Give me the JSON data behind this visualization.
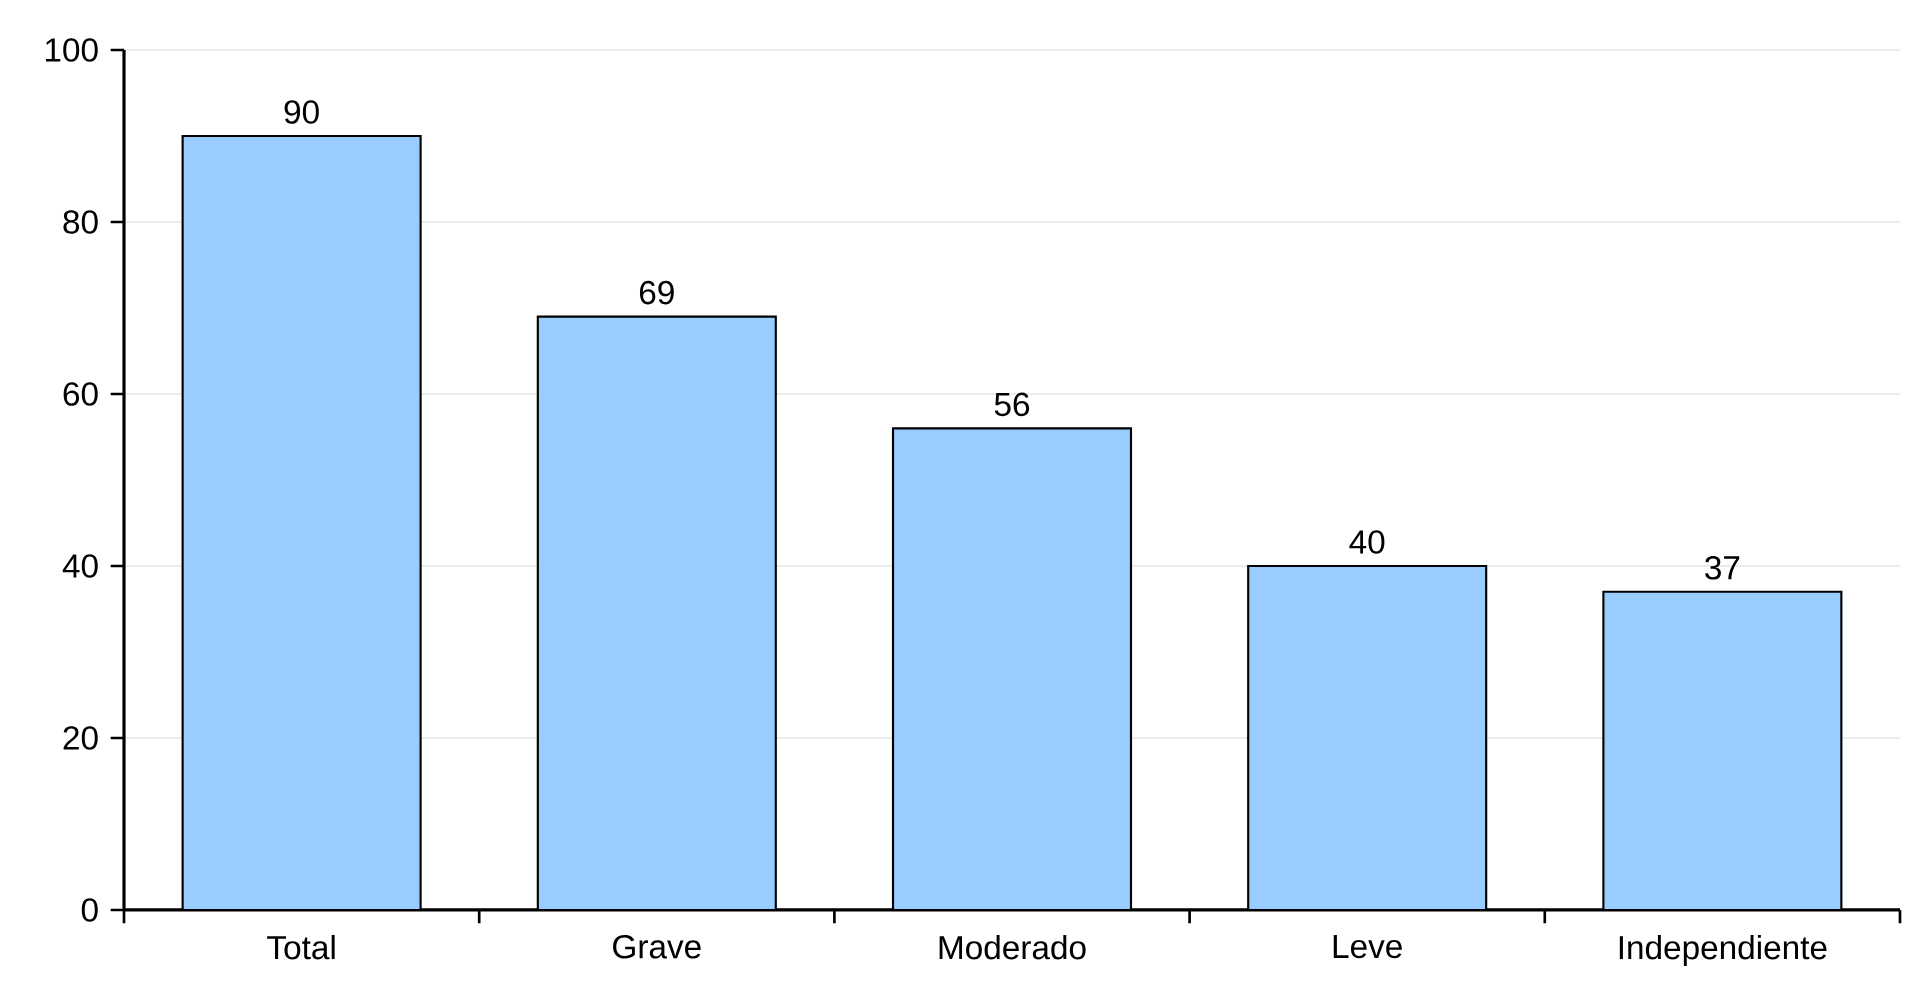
{
  "chart_data": {
    "type": "bar",
    "categories": [
      "Total",
      "Grave",
      "Moderado",
      "Leve",
      "Independiente"
    ],
    "values": [
      90,
      69,
      56,
      40,
      37
    ],
    "color": "#99ccff",
    "ylim": [
      0,
      100
    ],
    "yticks": [
      0,
      20,
      40,
      60,
      80,
      100
    ],
    "grid": "y",
    "data_labels": true
  }
}
